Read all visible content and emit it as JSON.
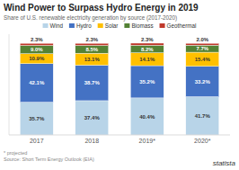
{
  "chart_data": {
    "type": "bar",
    "stacked": true,
    "title": "Wind Power to Surpass Hydro Energy in 2019",
    "subtitle": "Share of U.S. renewable electricity generation by source (2017-2020)",
    "annotations": [
      "* projected",
      "Source: Short Term Energy Outlook (EIA)",
      "statista"
    ],
    "categories": [
      "2017",
      "2018",
      "2019*",
      "2020*"
    ],
    "series": [
      {
        "name": "Wind",
        "color": "#b8d4e8",
        "values": [
          35.7,
          37.4,
          40.4,
          41.7
        ],
        "value_labels": [
          "35.7%",
          "37.4%",
          "40.4%",
          "41.7%"
        ]
      },
      {
        "name": "Hydro",
        "color": "#4472c4",
        "values": [
          42.1,
          38.7,
          35.2,
          33.2
        ],
        "value_labels": [
          "42.1%",
          "38.7%",
          "35.2%",
          "33.2%"
        ]
      },
      {
        "name": "Solar",
        "color": "#ffc000",
        "values": [
          10.9,
          13.1,
          14.1,
          15.4
        ],
        "value_labels": [
          "10.9%",
          "13.1%",
          "14.1%",
          "15.4%"
        ]
      },
      {
        "name": "Biomass",
        "color": "#548235",
        "values": [
          9.0,
          8.5,
          8.2,
          7.7
        ],
        "value_labels": [
          "9.0%",
          "8.5%",
          "8.2%",
          "7.7%"
        ]
      },
      {
        "name": "Geothermal",
        "color": "#c0392b",
        "values": [
          2.3,
          2.3,
          2.3,
          2.0
        ],
        "value_labels": [
          "2.3%",
          "2.3%",
          "2.3%",
          "2.0%"
        ]
      }
    ],
    "ylim": [
      0,
      110
    ],
    "data_labels": true,
    "tick_labels": "x",
    "legend": "top",
    "grid": false
  }
}
